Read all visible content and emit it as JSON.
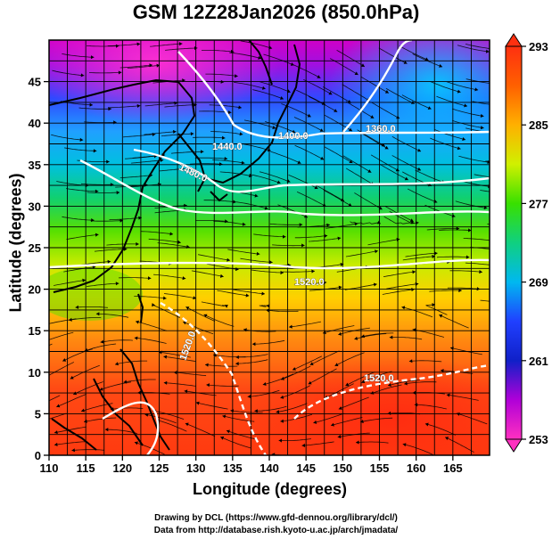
{
  "title": "GSM 12Z28Jan2026 (850.0hPa)",
  "x_axis": {
    "label": "Longitude (degrees)",
    "range": [
      110,
      170
    ],
    "ticks": [
      "110",
      "115",
      "120",
      "125",
      "130",
      "135",
      "140",
      "145",
      "150",
      "155",
      "160",
      "165"
    ]
  },
  "y_axis": {
    "label": "Latitude  (degrees)",
    "range": [
      0,
      50
    ],
    "ticks": [
      "0",
      "5",
      "10",
      "15",
      "20",
      "25",
      "30",
      "35",
      "40",
      "45"
    ]
  },
  "colorbar": {
    "range": [
      253,
      293
    ],
    "ticks": [
      "253",
      "261",
      "269",
      "277",
      "285",
      "293"
    ],
    "colors": [
      "#ff4fc8",
      "#c000d8",
      "#2030ff",
      "#00b8f0",
      "#10d078",
      "#38e000",
      "#d8f000",
      "#ff9000",
      "#ff3000"
    ]
  },
  "contour_labels": [
    "1440.0",
    "1400.0",
    "1480.0",
    "1360.0",
    "1520.0",
    "1520.0",
    "1520.0"
  ],
  "credits": {
    "line1": "Drawing by DCL (https://www.gfd-dennou.org/library/dcl/)",
    "line2": "Data from http://database.rish.kyoto-u.ac.jp/arch/jmadata/"
  },
  "chart_data": {
    "type": "heatmap",
    "variable": "temperature (colour shading) with geopotential height contours and wind streamlines",
    "x": [
      110,
      120,
      130,
      140,
      150,
      160,
      170
    ],
    "y": [
      0,
      10,
      20,
      30,
      40,
      50
    ],
    "approx_values_by_latitude": [
      {
        "lat": 0,
        "value": 291
      },
      {
        "lat": 10,
        "value": 290
      },
      {
        "lat": 20,
        "value": 284
      },
      {
        "lat": 25,
        "value": 281
      },
      {
        "lat": 30,
        "value": 277
      },
      {
        "lat": 35,
        "value": 272
      },
      {
        "lat": 40,
        "value": 265
      },
      {
        "lat": 45,
        "value": 258
      },
      {
        "lat": 50,
        "value": 255
      }
    ],
    "xlabel": "Longitude (degrees)",
    "ylabel": "Latitude  (degrees)",
    "xlim": [
      110,
      170
    ],
    "ylim": [
      0,
      50
    ],
    "grid": true,
    "colorbar_range": [
      253,
      293
    ]
  }
}
